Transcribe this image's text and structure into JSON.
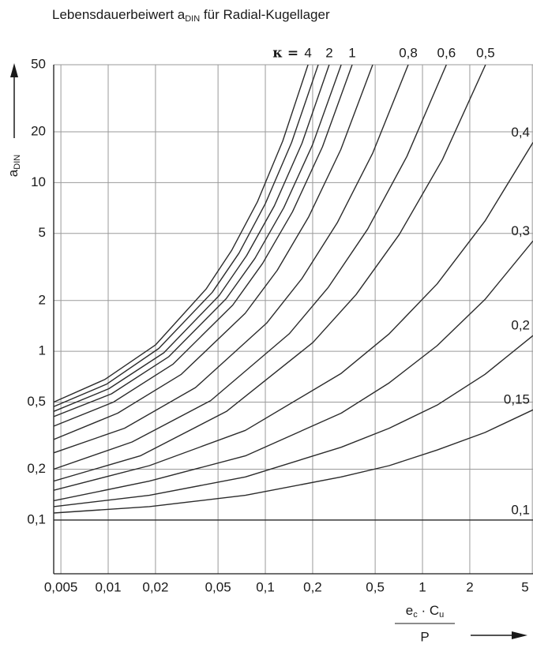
{
  "chart_data": {
    "type": "line",
    "title": {
      "pre": "Lebensdauerbeiwert a",
      "sub": "DIN",
      "post": " für Radial-Kugellager"
    },
    "y_label": {
      "main": "a",
      "sub": "DIN"
    },
    "x_label": {
      "num": [
        {
          "text": "e"
        },
        {
          "sub": "c"
        },
        {
          "text": " · C"
        },
        {
          "sub": "u"
        }
      ],
      "den": "P"
    },
    "kappa_label": "κ =",
    "log_x": true,
    "log_y": true,
    "grid": true,
    "grid_color": "#9a9a9a",
    "line_color": "#2b2b2b",
    "xlim": [
      0.0045,
      5.05
    ],
    "ylim": [
      0.048,
      50
    ],
    "xticks": [
      {
        "value": 0.005,
        "label": "0,005"
      },
      {
        "value": 0.01,
        "label": "0,01"
      },
      {
        "value": 0.02,
        "label": "0,02"
      },
      {
        "value": 0.05,
        "label": "0,05"
      },
      {
        "value": 0.1,
        "label": "0,1"
      },
      {
        "value": 0.2,
        "label": "0,2"
      },
      {
        "value": 0.5,
        "label": "0,5"
      },
      1,
      2,
      5
    ],
    "yticks": [
      {
        "value": 0.1,
        "label": "0,1"
      },
      {
        "value": 0.2,
        "label": "0,2"
      },
      {
        "value": 0.5,
        "label": "0,5"
      },
      1,
      2,
      5,
      10,
      20,
      50
    ],
    "series": [
      {
        "name": "4",
        "x": [
          0.0045,
          0.0095,
          0.02,
          0.042,
          0.061,
          0.089,
          0.129,
          0.187
        ],
        "values": [
          0.5,
          0.68,
          1.09,
          2.34,
          3.96,
          7.7,
          17.6,
          50
        ]
      },
      {
        "x": [
          0.0045,
          0.0098,
          0.021,
          0.046,
          0.068,
          0.1,
          0.147,
          0.217
        ],
        "values": [
          0.47,
          0.64,
          1.04,
          2.24,
          3.82,
          7.5,
          17.3,
          50
        ]
      },
      {
        "name": "2",
        "x": [
          0.0045,
          0.0101,
          0.0226,
          0.0508,
          0.076,
          0.114,
          0.171,
          0.255
        ],
        "values": [
          0.44,
          0.6,
          0.98,
          2.14,
          3.69,
          7.28,
          17.1,
          50
        ]
      },
      {
        "x": [
          0.0045,
          0.0105,
          0.0243,
          0.0563,
          0.0859,
          0.131,
          0.2,
          0.304
        ],
        "values": [
          0.41,
          0.56,
          0.93,
          2.05,
          3.56,
          7.1,
          16.8,
          50
        ]
      },
      {
        "name": "1",
        "x": [
          0.0045,
          0.0108,
          0.0259,
          0.0621,
          0.0961,
          0.149,
          0.231,
          0.357
        ],
        "values": [
          0.36,
          0.5,
          0.84,
          1.88,
          3.32,
          6.73,
          16.3,
          50
        ]
      },
      {
        "x": [
          0.0045,
          0.0115,
          0.0292,
          0.0744,
          0.119,
          0.189,
          0.302,
          0.482
        ],
        "values": [
          0.3,
          0.43,
          0.73,
          1.68,
          3.02,
          6.28,
          15.7,
          50
        ]
      },
      {
        "name": "0,8",
        "x": [
          0.0045,
          0.0127,
          0.036,
          0.102,
          0.171,
          0.287,
          0.483,
          0.812
        ],
        "values": [
          0.25,
          0.35,
          0.61,
          1.47,
          2.7,
          5.78,
          15,
          50
        ]
      },
      {
        "name": "0,6",
        "x": [
          0.0045,
          0.0142,
          0.0449,
          0.142,
          0.252,
          0.448,
          0.796,
          1.42
        ],
        "values": [
          0.2,
          0.29,
          0.51,
          1.27,
          2.4,
          5.3,
          14.3,
          50
        ]
      },
      {
        "name": "0,5",
        "x": [
          0.0045,
          0.016,
          0.0566,
          0.201,
          0.378,
          0.711,
          1.34,
          2.52
        ],
        "values": [
          0.17,
          0.24,
          0.44,
          1.13,
          2.17,
          4.92,
          13.7,
          50
        ]
      },
      {
        "name": "0,4",
        "x": [
          0.0045,
          0.0183,
          0.0747,
          0.304,
          0.614,
          1.24,
          2.5,
          5.05
        ],
        "values": [
          0.15,
          0.21,
          0.34,
          0.74,
          1.27,
          2.51,
          5.92,
          17.3
        ]
      },
      {
        "name": "0,3",
        "x": [
          0.0045,
          0.0183,
          0.0747,
          0.304,
          0.614,
          1.24,
          2.5,
          5.05
        ],
        "values": [
          0.13,
          0.17,
          0.24,
          0.43,
          0.65,
          1.08,
          2.03,
          4.51
        ]
      },
      {
        "name": "0,2",
        "x": [
          0.0045,
          0.0183,
          0.0747,
          0.304,
          0.614,
          1.24,
          2.5,
          5.05
        ],
        "values": [
          0.12,
          0.14,
          0.18,
          0.27,
          0.35,
          0.48,
          0.73,
          1.24
        ]
      },
      {
        "name": "0,15",
        "x": [
          0.0045,
          0.0183,
          0.0747,
          0.304,
          0.614,
          1.24,
          2.5,
          5.05
        ],
        "values": [
          0.11,
          0.12,
          0.14,
          0.18,
          0.21,
          0.26,
          0.33,
          0.45
        ]
      },
      {
        "name": "0,1",
        "x": [
          0.0045,
          5.05
        ],
        "values": [
          0.1,
          0.1
        ]
      }
    ]
  }
}
